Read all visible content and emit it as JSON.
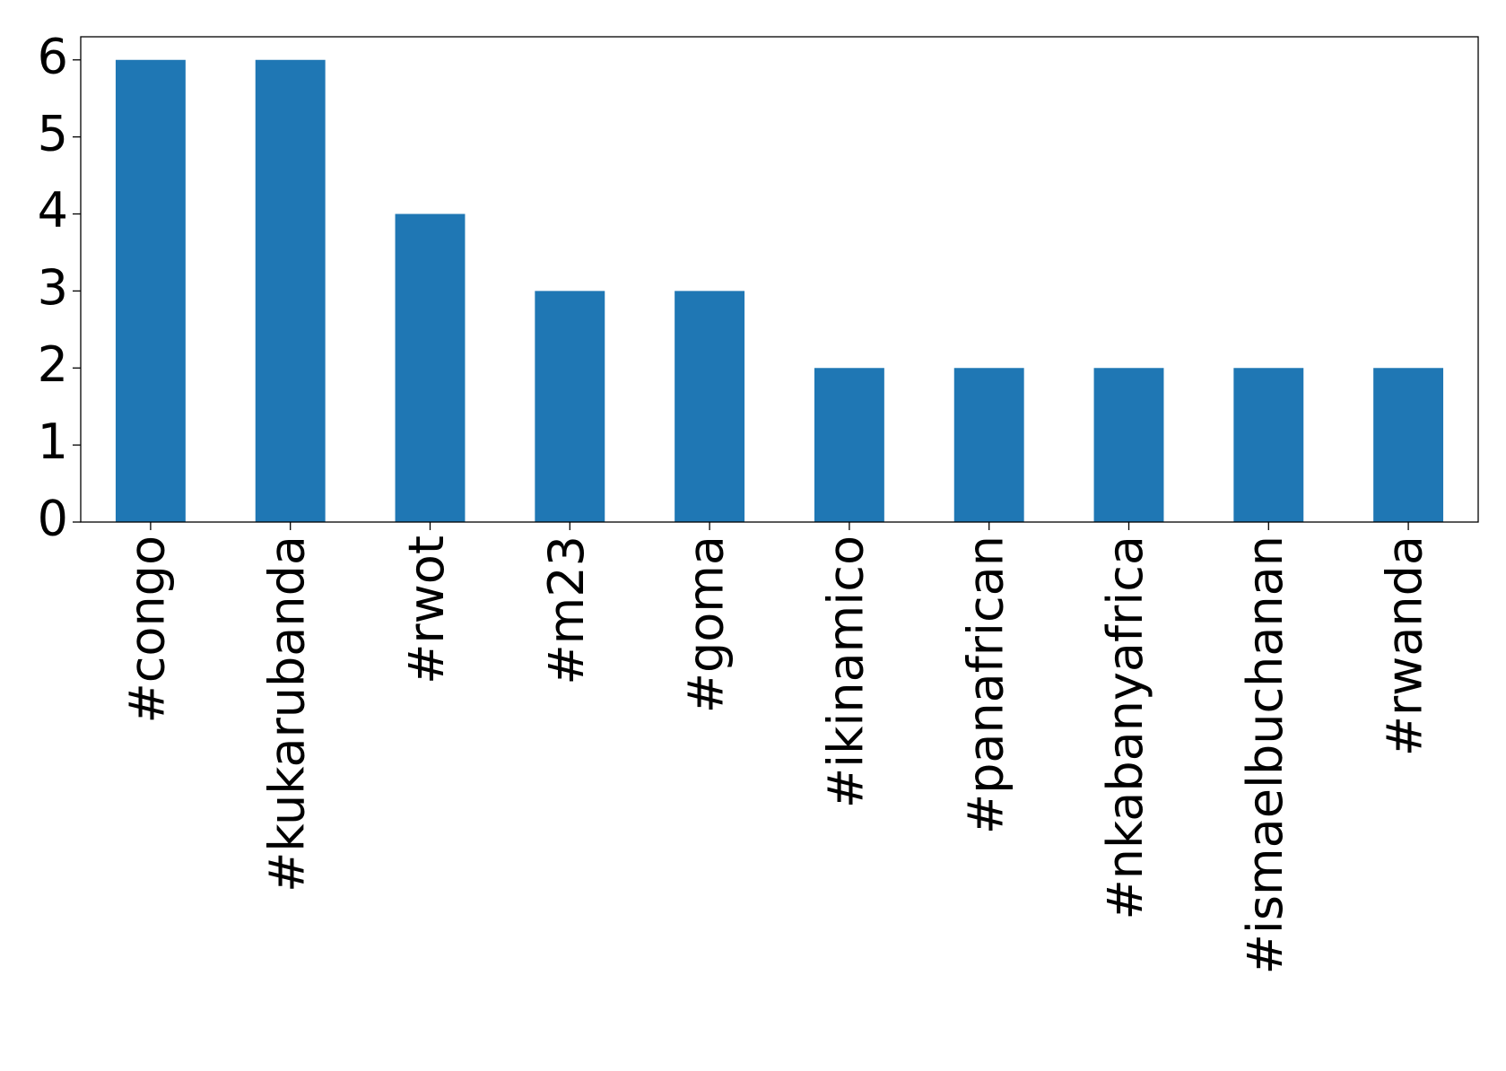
{
  "chart_data": {
    "type": "bar",
    "categories": [
      "#congo",
      "#kukarubanda",
      "#rwot",
      "#m23",
      "#goma",
      "#ikinamico",
      "#panafrican",
      "#nkabanyafrica",
      "#ismaelbuchanan",
      "#rwanda"
    ],
    "values": [
      6,
      6,
      4,
      3,
      3,
      2,
      2,
      2,
      2,
      2
    ],
    "color": "#1f77b4",
    "ylim": [
      0,
      6.3
    ],
    "yticks": [
      0,
      1,
      2,
      3,
      4,
      5,
      6
    ],
    "grid": false
  }
}
